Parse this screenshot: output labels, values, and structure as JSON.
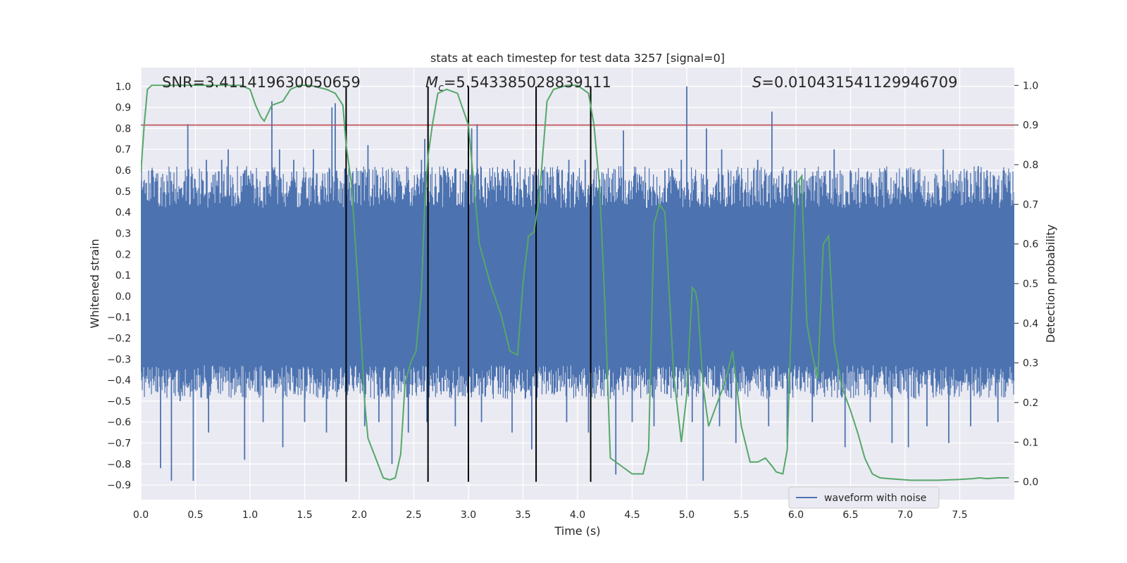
{
  "chart_data": {
    "type": "line",
    "title": "stats at each timestep for test data 3257 [signal=0]",
    "xlabel": "Time (s)",
    "ylabel_left": "Whitened strain",
    "ylabel_right": "Detection probability",
    "xlim": [
      0,
      8
    ],
    "ylim_left": [
      -0.97,
      1.09
    ],
    "ylim_right": [
      -0.045,
      1.045
    ],
    "x_ticks": [
      "0.0",
      "0.5",
      "1.0",
      "1.5",
      "2.0",
      "2.5",
      "3.0",
      "3.5",
      "4.0",
      "4.5",
      "5.0",
      "5.5",
      "6.0",
      "6.5",
      "7.0",
      "7.5"
    ],
    "y_ticks_left": [
      "-0.9",
      "-0.8",
      "-0.7",
      "-0.6",
      "-0.5",
      "-0.4",
      "-0.3",
      "-0.2",
      "-0.1",
      "0.0",
      "0.1",
      "0.2",
      "0.3",
      "0.4",
      "0.5",
      "0.6",
      "0.7",
      "0.8",
      "0.9",
      "1.0"
    ],
    "y_ticks_right": [
      "0.0",
      "0.1",
      "0.2",
      "0.3",
      "0.4",
      "0.5",
      "0.6",
      "0.7",
      "0.8",
      "0.9",
      "1.0"
    ],
    "grid": true,
    "legend": {
      "entries": [
        "waveform with noise"
      ],
      "placement": "lower-right"
    },
    "annotations": {
      "snr": "SNR=3.411419630050659",
      "mc_symbol": "M",
      "mc_sub": "c",
      "mc_value": "=5.543385028839111",
      "s_symbol": "S",
      "s_value": "=0.010431541129946709"
    },
    "threshold": {
      "value": 0.9,
      "axis": "right",
      "color": "#c44e52"
    },
    "vertical_lines_x": [
      1.88,
      2.63,
      3.0,
      3.62,
      4.12
    ],
    "waveform": {
      "name": "waveform with noise",
      "color": "#4c72b0",
      "core_range": [
        -0.33,
        0.42
      ],
      "spikes": [
        [
          0.1,
          0.5
        ],
        [
          0.28,
          0.55
        ],
        [
          0.43,
          0.82
        ],
        [
          0.57,
          0.55
        ],
        [
          0.6,
          0.65
        ],
        [
          0.74,
          0.65
        ],
        [
          0.8,
          0.7
        ],
        [
          0.95,
          0.6
        ],
        [
          1.02,
          0.5
        ],
        [
          1.2,
          0.93
        ],
        [
          1.27,
          0.7
        ],
        [
          1.4,
          0.65
        ],
        [
          1.58,
          0.7
        ],
        [
          1.75,
          0.9
        ],
        [
          1.78,
          0.92
        ],
        [
          1.97,
          0.5
        ],
        [
          2.08,
          0.72
        ],
        [
          2.22,
          0.55
        ],
        [
          2.37,
          0.55
        ],
        [
          2.57,
          0.65
        ],
        [
          2.6,
          0.75
        ],
        [
          2.78,
          0.6
        ],
        [
          2.97,
          0.55
        ],
        [
          3.03,
          0.8
        ],
        [
          3.08,
          0.82
        ],
        [
          3.2,
          0.55
        ],
        [
          3.42,
          0.65
        ],
        [
          3.62,
          0.7
        ],
        [
          3.68,
          0.6
        ],
        [
          3.92,
          0.65
        ],
        [
          4.07,
          0.65
        ],
        [
          4.12,
          0.72
        ],
        [
          4.25,
          0.55
        ],
        [
          4.42,
          0.79
        ],
        [
          4.6,
          0.55
        ],
        [
          4.8,
          0.6
        ],
        [
          4.87,
          0.6
        ],
        [
          4.95,
          0.65
        ],
        [
          5.0,
          1.0
        ],
        [
          5.18,
          0.8
        ],
        [
          5.32,
          0.7
        ],
        [
          5.5,
          0.55
        ],
        [
          5.65,
          0.65
        ],
        [
          5.78,
          0.88
        ],
        [
          5.95,
          0.6
        ],
        [
          6.1,
          0.55
        ],
        [
          6.35,
          0.7
        ],
        [
          6.5,
          0.6
        ],
        [
          6.82,
          0.6
        ],
        [
          7.12,
          0.6
        ],
        [
          7.35,
          0.7
        ],
        [
          7.5,
          0.5
        ],
        [
          7.67,
          0.62
        ],
        [
          7.75,
          0.6
        ],
        [
          7.9,
          0.6
        ],
        [
          0.18,
          -0.82
        ],
        [
          0.28,
          -0.88
        ],
        [
          0.36,
          -0.5
        ],
        [
          0.48,
          -0.88
        ],
        [
          0.62,
          -0.65
        ],
        [
          0.95,
          -0.78
        ],
        [
          1.12,
          -0.6
        ],
        [
          1.3,
          -0.72
        ],
        [
          1.5,
          -0.6
        ],
        [
          1.7,
          -0.65
        ],
        [
          2.05,
          -0.62
        ],
        [
          2.18,
          -0.6
        ],
        [
          2.3,
          -0.8
        ],
        [
          2.45,
          -0.65
        ],
        [
          2.62,
          -0.6
        ],
        [
          2.88,
          -0.62
        ],
        [
          3.12,
          -0.6
        ],
        [
          3.4,
          -0.65
        ],
        [
          3.58,
          -0.73
        ],
        [
          3.9,
          -0.6
        ],
        [
          4.1,
          -0.65
        ],
        [
          4.35,
          -0.85
        ],
        [
          4.5,
          -0.6
        ],
        [
          4.7,
          -0.62
        ],
        [
          5.05,
          -0.6
        ],
        [
          5.15,
          -0.88
        ],
        [
          5.3,
          -0.62
        ],
        [
          5.45,
          -0.7
        ],
        [
          5.75,
          -0.62
        ],
        [
          5.92,
          -0.7
        ],
        [
          6.15,
          -0.6
        ],
        [
          6.45,
          -0.72
        ],
        [
          6.68,
          -0.6
        ],
        [
          6.88,
          -0.7
        ],
        [
          7.03,
          -0.72
        ],
        [
          7.2,
          -0.62
        ],
        [
          7.4,
          -0.7
        ],
        [
          7.6,
          -0.62
        ],
        [
          7.85,
          -0.6
        ]
      ]
    },
    "detection_probability": {
      "color": "#55a868",
      "x": [
        0.0,
        0.03,
        0.06,
        0.1,
        0.2,
        0.4,
        0.6,
        0.8,
        0.92,
        1.0,
        1.05,
        1.1,
        1.13,
        1.2,
        1.3,
        1.37,
        1.45,
        1.55,
        1.7,
        1.78,
        1.85,
        1.88,
        1.93,
        2.0,
        2.05,
        2.08,
        2.15,
        2.22,
        2.28,
        2.33,
        2.38,
        2.42,
        2.47,
        2.52,
        2.57,
        2.6,
        2.63,
        2.67,
        2.72,
        2.8,
        2.9,
        3.0,
        3.05,
        3.1,
        3.2,
        3.3,
        3.38,
        3.45,
        3.5,
        3.55,
        3.6,
        3.65,
        3.72,
        3.78,
        3.9,
        4.0,
        4.1,
        4.15,
        4.2,
        4.25,
        4.3,
        4.35,
        4.5,
        4.6,
        4.65,
        4.7,
        4.75,
        4.8,
        4.88,
        4.95,
        5.0,
        5.05,
        5.08,
        5.1,
        5.15,
        5.2,
        5.28,
        5.35,
        5.42,
        5.5,
        5.58,
        5.65,
        5.72,
        5.78,
        5.82,
        5.88,
        5.92,
        5.95,
        6.0,
        6.05,
        6.1,
        6.15,
        6.2,
        6.25,
        6.3,
        6.35,
        6.42,
        6.5,
        6.57,
        6.63,
        6.7,
        6.77,
        6.85,
        6.95,
        7.05,
        7.15,
        7.3,
        7.5,
        7.62,
        7.68,
        7.75,
        7.85,
        7.95
      ],
      "y": [
        0.78,
        0.9,
        0.99,
        1.0,
        1.0,
        1.0,
        1.0,
        1.0,
        1.0,
        0.99,
        0.95,
        0.92,
        0.91,
        0.95,
        0.96,
        0.99,
        1.0,
        1.0,
        0.99,
        0.98,
        0.95,
        0.85,
        0.75,
        0.45,
        0.2,
        0.11,
        0.06,
        0.01,
        0.005,
        0.01,
        0.07,
        0.25,
        0.3,
        0.33,
        0.48,
        0.7,
        0.82,
        0.9,
        0.98,
        0.99,
        0.98,
        0.9,
        0.75,
        0.6,
        0.5,
        0.42,
        0.33,
        0.32,
        0.5,
        0.62,
        0.63,
        0.72,
        0.96,
        0.99,
        1.0,
        1.0,
        0.98,
        0.9,
        0.75,
        0.45,
        0.06,
        0.05,
        0.02,
        0.02,
        0.08,
        0.65,
        0.7,
        0.68,
        0.27,
        0.1,
        0.22,
        0.49,
        0.48,
        0.45,
        0.24,
        0.14,
        0.2,
        0.25,
        0.33,
        0.14,
        0.05,
        0.05,
        0.06,
        0.04,
        0.025,
        0.02,
        0.08,
        0.35,
        0.75,
        0.77,
        0.4,
        0.32,
        0.26,
        0.6,
        0.62,
        0.35,
        0.24,
        0.18,
        0.12,
        0.06,
        0.02,
        0.01,
        0.008,
        0.006,
        0.004,
        0.004,
        0.004,
        0.006,
        0.008,
        0.01,
        0.008,
        0.01,
        0.01
      ]
    }
  }
}
